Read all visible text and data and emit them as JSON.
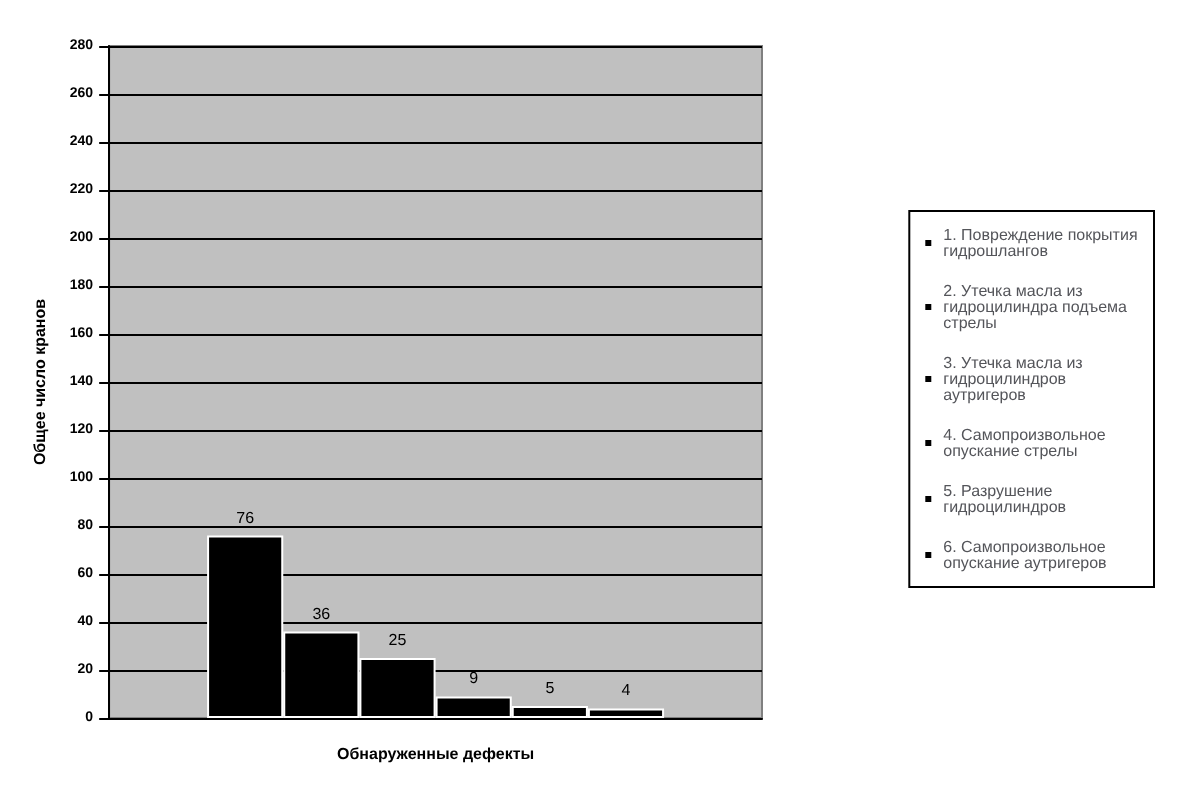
{
  "chart_data": {
    "type": "bar",
    "xlabel": "Обнаруженные дефекты",
    "ylabel": "Общее число кранов",
    "categories": [
      null
    ],
    "series": [
      {
        "name": "1. Повреждение покрытия гидрошлангов",
        "color": "#000000",
        "values": [
          76
        ]
      },
      {
        "name": "2. Утечка масла из гидроцилиндра подъема стрелы",
        "color": "#000000",
        "values": [
          36
        ]
      },
      {
        "name": "3. Утечка масла из гидроцилиндров аутригеров",
        "color": "#000000",
        "values": [
          25
        ]
      },
      {
        "name": "4. Самопроизвольное опускание стрелы",
        "color": "#000000",
        "values": [
          9
        ]
      },
      {
        "name": "5. Разрушение гидроцилиндров",
        "color": "#000000",
        "values": [
          5
        ]
      },
      {
        "name": "6. Самопроизвольное опускание аутригеров",
        "color": "#000000",
        "values": [
          4
        ]
      }
    ],
    "ylim": [
      0,
      280
    ],
    "yticks": [
      0,
      20,
      40,
      60,
      80,
      100,
      120,
      140,
      160,
      180,
      200,
      220,
      240,
      260,
      280
    ],
    "grid": "y",
    "legend": "right",
    "data_labels": true
  }
}
